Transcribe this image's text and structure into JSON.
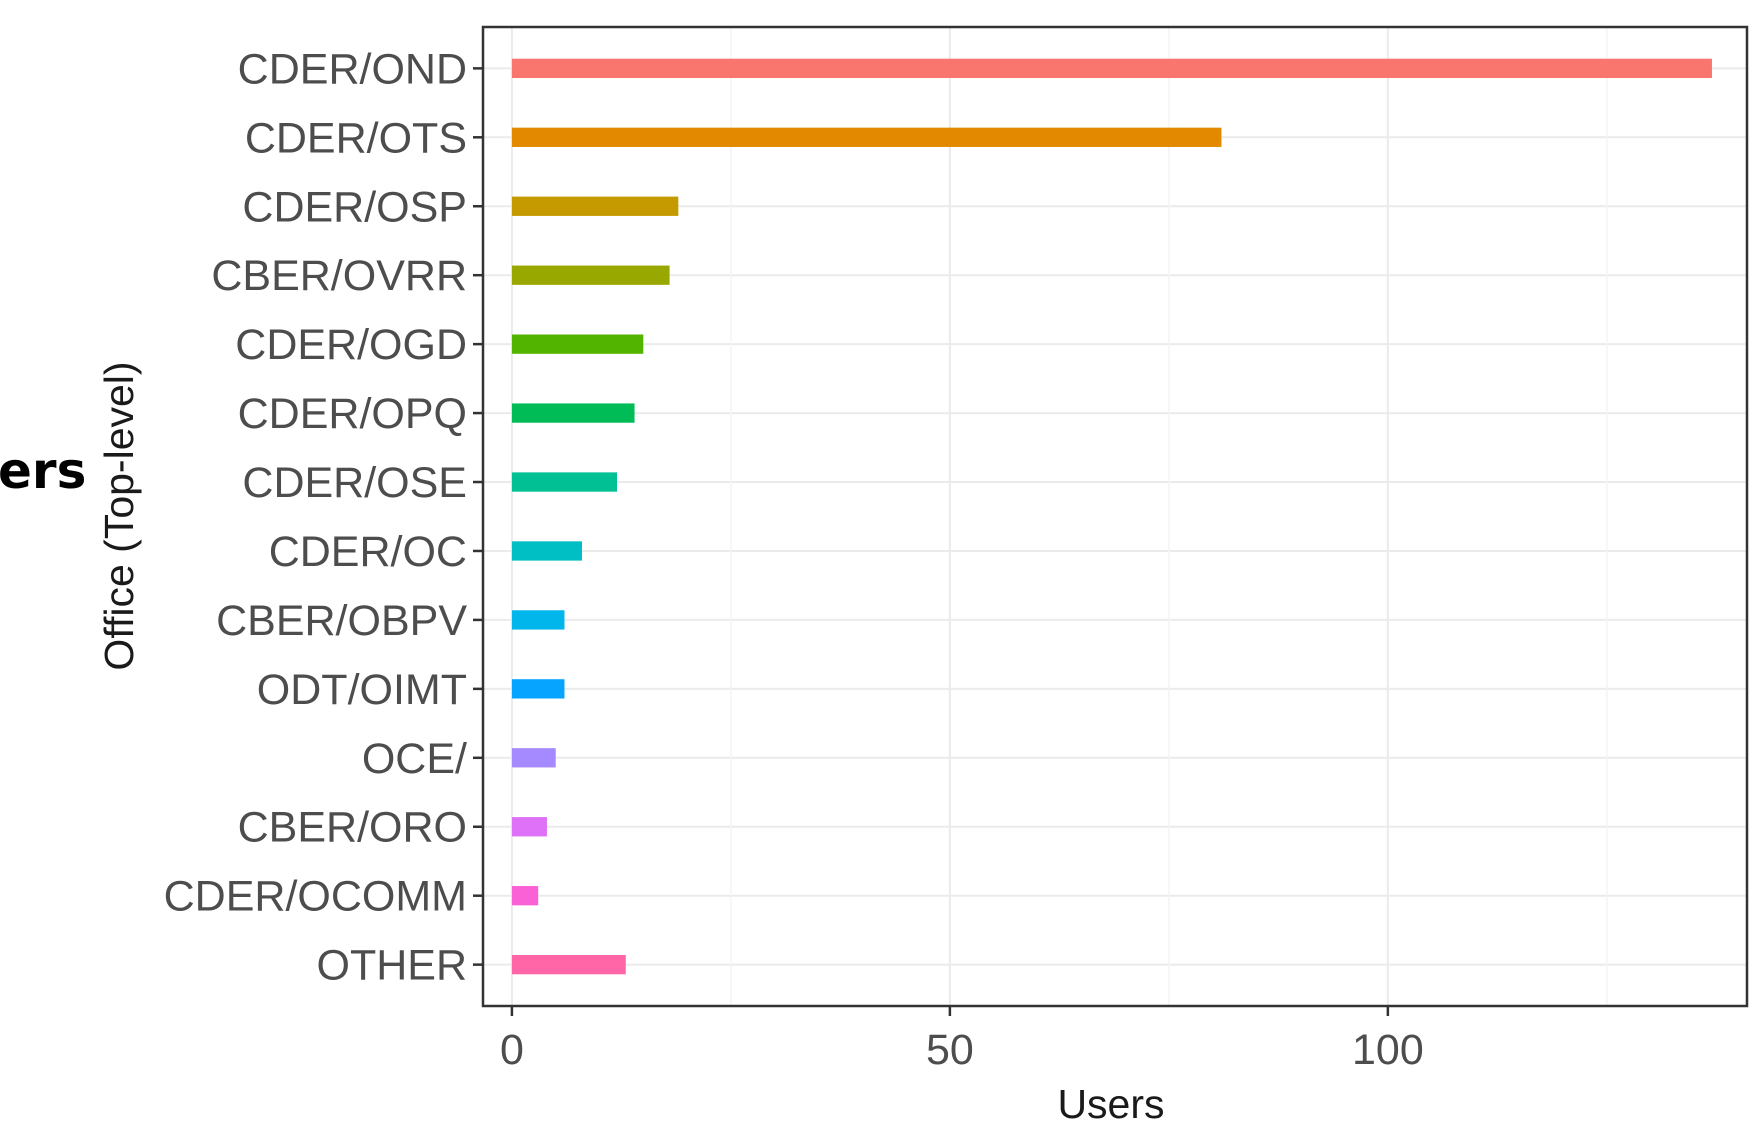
{
  "side_label": "ers",
  "chart_data": {
    "type": "bar",
    "orientation": "horizontal",
    "xlabel": "Users",
    "ylabel": "Office (Top-level)",
    "xlim": [
      -3.3,
      141
    ],
    "x_ticks": [
      0,
      50,
      100
    ],
    "grid": true,
    "legend": "none",
    "categories": [
      "CDER/OND",
      "CDER/OTS",
      "CDER/OSP",
      "CBER/OVRR",
      "CDER/OGD",
      "CDER/OPQ",
      "CDER/OSE",
      "CDER/OC",
      "CBER/OBPV",
      "ODT/OIMT",
      "OCE/",
      "CBER/ORO",
      "CDER/OCOMM",
      "OTHER"
    ],
    "values": [
      137,
      81,
      19,
      18,
      15,
      14,
      12,
      8,
      6,
      6,
      5,
      4,
      3,
      13
    ],
    "colors": [
      "#F8766D",
      "#E38900",
      "#C49A00",
      "#99A800",
      "#53B400",
      "#00BC56",
      "#00C094",
      "#00BFC4",
      "#00B6EB",
      "#06A4FF",
      "#A58AFF",
      "#DF70F8",
      "#FB61D7",
      "#FF66A8"
    ]
  }
}
